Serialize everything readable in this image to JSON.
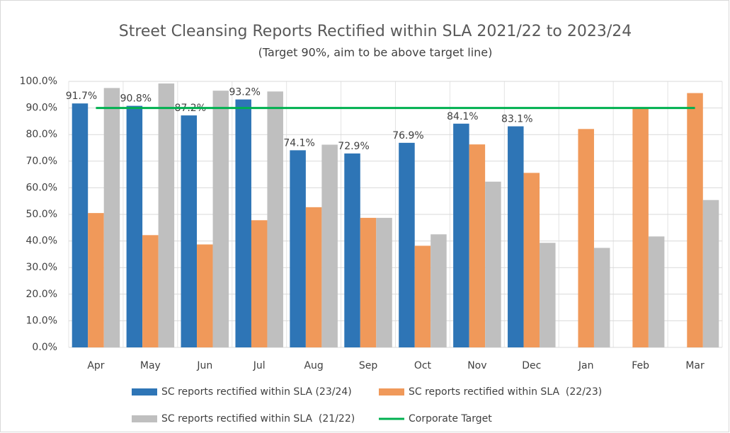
{
  "chart_data": {
    "type": "bar",
    "title": "Street Cleansing Reports Rectified within SLA 2021/22 to 2023/24",
    "subtitle": "(Target 90%, aim to be above target line)",
    "categories": [
      "Apr",
      "May",
      "Jun",
      "Jul",
      "Aug",
      "Sep",
      "Oct",
      "Nov",
      "Dec",
      "Jan",
      "Feb",
      "Mar"
    ],
    "series": [
      {
        "name": "SC reports rectified within SLA (23/24)",
        "color": "#2e75b6",
        "type": "bar",
        "values": [
          91.7,
          90.8,
          87.2,
          93.2,
          74.1,
          72.9,
          76.9,
          84.1,
          83.1,
          null,
          null,
          null
        ],
        "value_labels": [
          "91.7%",
          "90.8%",
          "87.2%",
          "93.2%",
          "74.1%",
          "72.9%",
          "76.9%",
          "84.1%",
          "83.1%",
          null,
          null,
          null
        ]
      },
      {
        "name": "SC reports rectified within SLA  (22/23)",
        "color": "#f0995a",
        "type": "bar",
        "values": [
          50.5,
          42.2,
          38.7,
          47.8,
          52.7,
          48.7,
          38.2,
          76.3,
          65.6,
          82.1,
          90.0,
          95.6
        ]
      },
      {
        "name": "SC reports rectified within SLA  (21/22)",
        "color": "#bfbfbf",
        "type": "bar",
        "values": [
          97.5,
          99.2,
          96.5,
          96.2,
          76.2,
          48.7,
          42.5,
          62.3,
          39.3,
          37.4,
          41.7,
          55.4
        ]
      },
      {
        "name": "Corporate Target",
        "color": "#00b050",
        "type": "line",
        "values": [
          90,
          90,
          90,
          90,
          90,
          90,
          90,
          90,
          90,
          90,
          90,
          90
        ]
      }
    ],
    "ylim": [
      0,
      100
    ],
    "yticks": [
      {
        "value": 0,
        "label": "0.0%"
      },
      {
        "value": 10,
        "label": "10.0%"
      },
      {
        "value": 20,
        "label": "20.0%"
      },
      {
        "value": 30,
        "label": "30.0%"
      },
      {
        "value": 40,
        "label": "40.0%"
      },
      {
        "value": 50,
        "label": "50.0%"
      },
      {
        "value": 60,
        "label": "60.0%"
      },
      {
        "value": 70,
        "label": "70.0%"
      },
      {
        "value": 80,
        "label": "80.0%"
      },
      {
        "value": 90,
        "label": "90.0%"
      },
      {
        "value": 100,
        "label": "100.0%"
      }
    ],
    "grid": true
  }
}
